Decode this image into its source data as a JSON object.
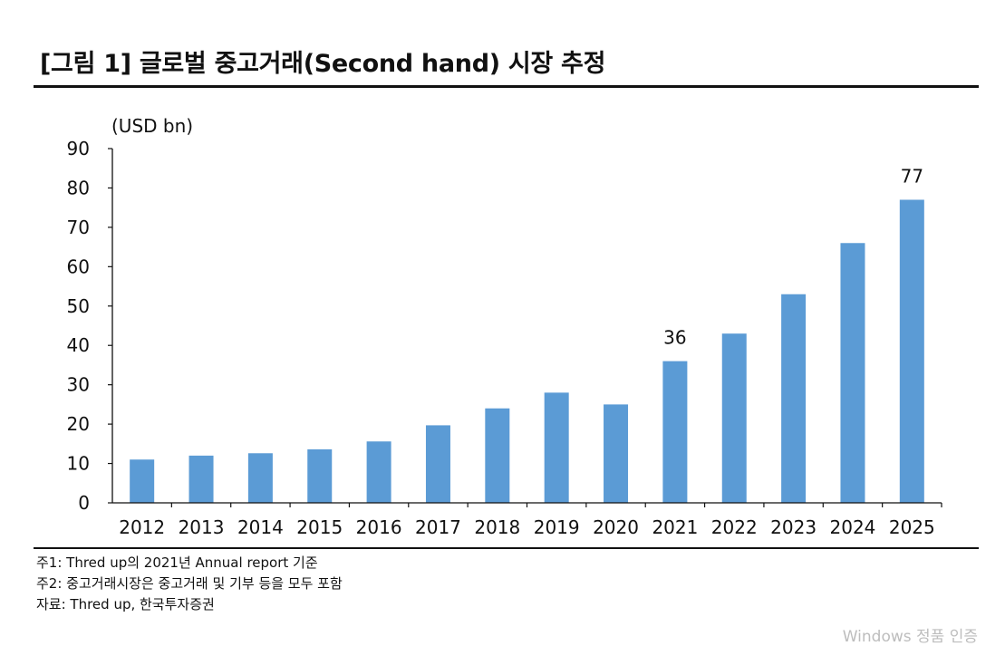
{
  "header": {
    "title": "[그림 1] 글로벌 중고거래(Second hand) 시장 추정"
  },
  "chart_data": {
    "type": "bar",
    "unit_label": "(USD bn)",
    "categories": [
      "2012",
      "2013",
      "2014",
      "2015",
      "2016",
      "2017",
      "2018",
      "2019",
      "2020",
      "2021",
      "2022",
      "2023",
      "2024",
      "2025"
    ],
    "values": [
      11,
      12,
      12.6,
      13.6,
      15.6,
      19.7,
      24,
      28,
      25,
      36,
      43,
      53,
      66,
      77
    ],
    "data_labels": [
      null,
      null,
      null,
      null,
      null,
      null,
      null,
      null,
      null,
      "36",
      null,
      null,
      null,
      "77"
    ],
    "ylim": [
      0,
      90
    ],
    "yticks": [
      0,
      10,
      20,
      30,
      40,
      50,
      60,
      70,
      80,
      90
    ],
    "bar_color": "#5b9bd5",
    "grid": false,
    "legend": "none"
  },
  "notes": [
    "주1: Thred up의 2021년 Annual report 기준",
    "주2: 중고거래시장은 중고거래 및 기부 등을 모두 포함",
    "자료: Thred up, 한국투자증권"
  ],
  "watermark": "Windows 정품 인증"
}
